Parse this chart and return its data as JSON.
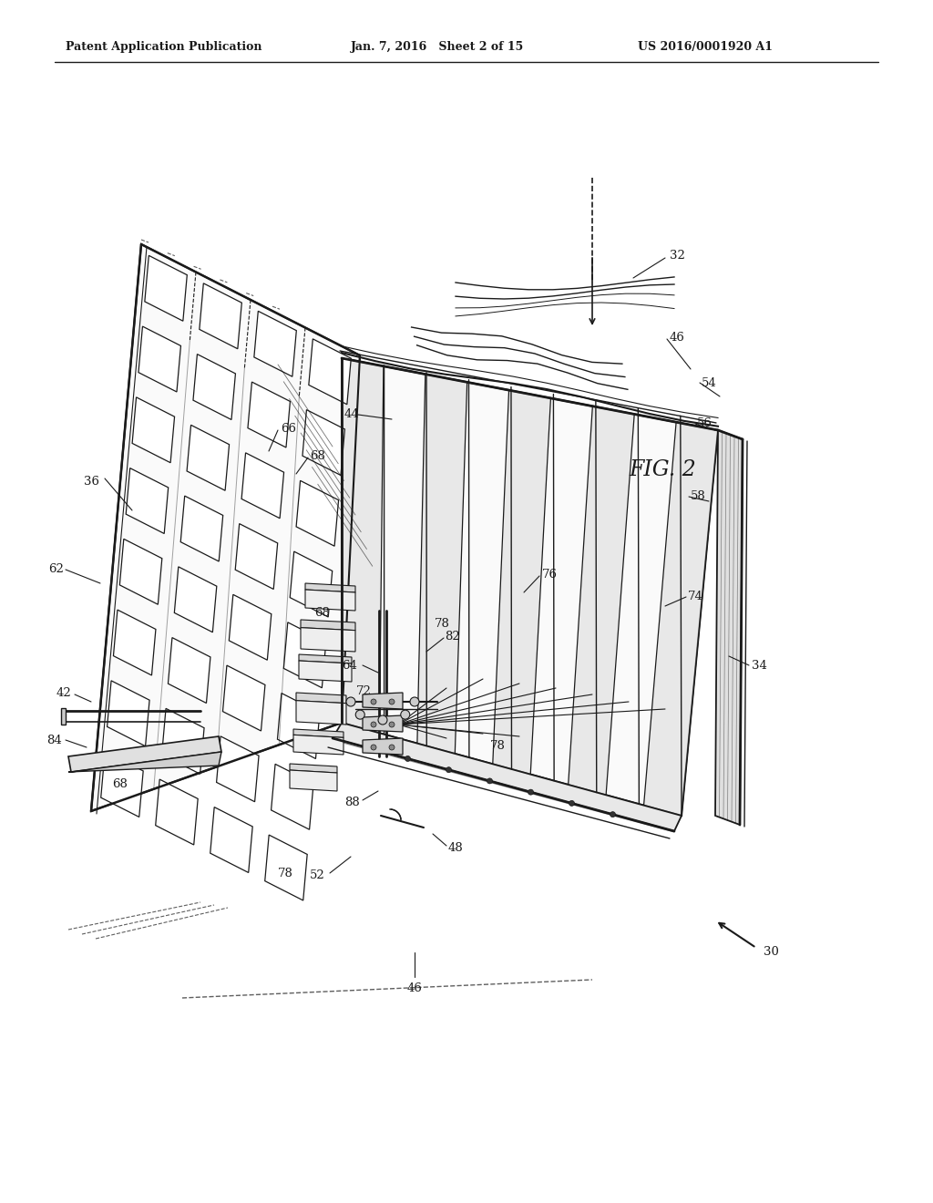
{
  "bg_color": "#ffffff",
  "header_left": "Patent Application Publication",
  "header_mid": "Jan. 7, 2016   Sheet 2 of 15",
  "header_right": "US 2016/0001920 A1",
  "line_color": "#1a1a1a",
  "draw_color": "#2a2a2a",
  "gray_light": "#e8e8e8",
  "gray_mid": "#aaaaaa",
  "gray_dark": "#666666"
}
